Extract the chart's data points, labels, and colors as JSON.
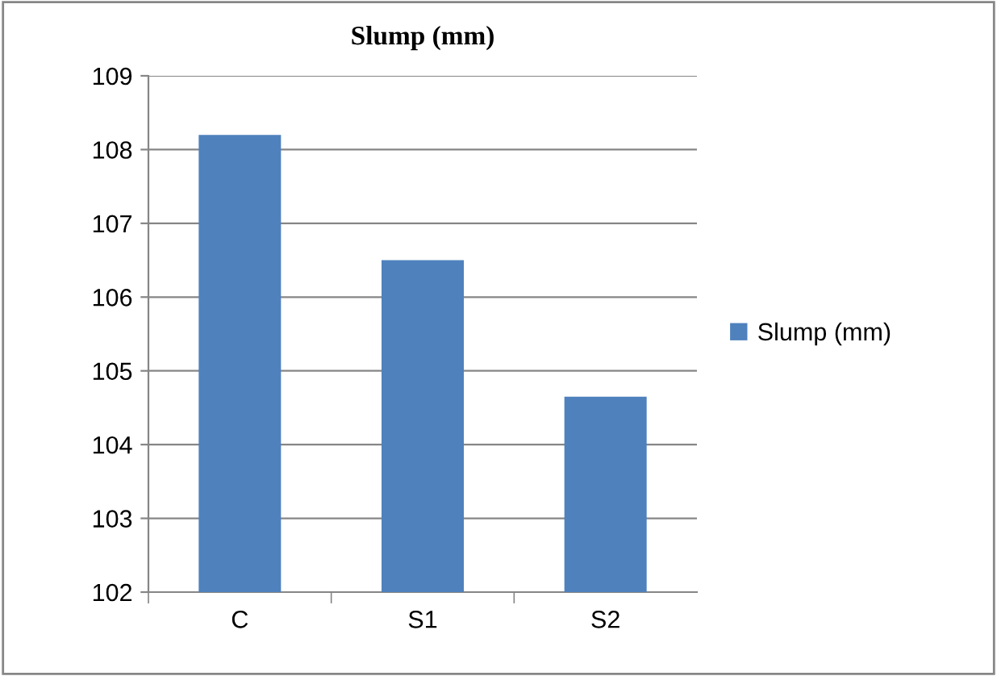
{
  "chart_data": {
    "type": "bar",
    "title": "Slump (mm)",
    "categories": [
      "C",
      "S1",
      "S2"
    ],
    "series": [
      {
        "name": "Slump (mm)",
        "color": "#4f81bd",
        "values": [
          108.2,
          106.5,
          104.65
        ]
      }
    ],
    "ylim": [
      102,
      109
    ],
    "yticks": [
      102,
      103,
      104,
      105,
      106,
      107,
      108,
      109
    ],
    "grid": "y",
    "legend": "right"
  }
}
